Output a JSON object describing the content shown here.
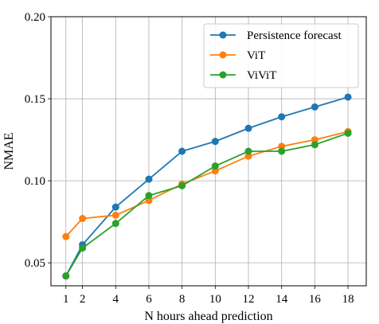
{
  "chart_data": {
    "type": "line",
    "title": "",
    "xlabel": "N hours ahead prediction",
    "ylabel": "NMAE",
    "x": [
      1,
      2,
      4,
      6,
      8,
      10,
      12,
      14,
      16,
      18
    ],
    "xticks": [
      "1",
      "2",
      "4",
      "6",
      "8",
      "10",
      "12",
      "14",
      "16",
      "18"
    ],
    "yticks": [
      "0.05",
      "0.10",
      "0.15",
      "0.20"
    ],
    "xlim": [
      0.1,
      19.1
    ],
    "ylim": [
      0.036,
      0.2
    ],
    "grid": true,
    "legend_position": "top-right",
    "series": [
      {
        "name": "Persistence forecast",
        "color": "#1f77b4",
        "values": [
          0.042,
          0.061,
          0.084,
          0.101,
          0.118,
          0.124,
          0.132,
          0.139,
          0.145,
          0.151
        ]
      },
      {
        "name": "ViT",
        "color": "#ff7f0e",
        "values": [
          0.066,
          0.077,
          0.079,
          0.088,
          0.098,
          0.106,
          0.115,
          0.121,
          0.125,
          0.13
        ]
      },
      {
        "name": "ViViT",
        "color": "#2ca02c",
        "values": [
          0.042,
          0.059,
          0.074,
          0.091,
          0.097,
          0.109,
          0.118,
          0.118,
          0.122,
          0.129
        ]
      }
    ]
  }
}
